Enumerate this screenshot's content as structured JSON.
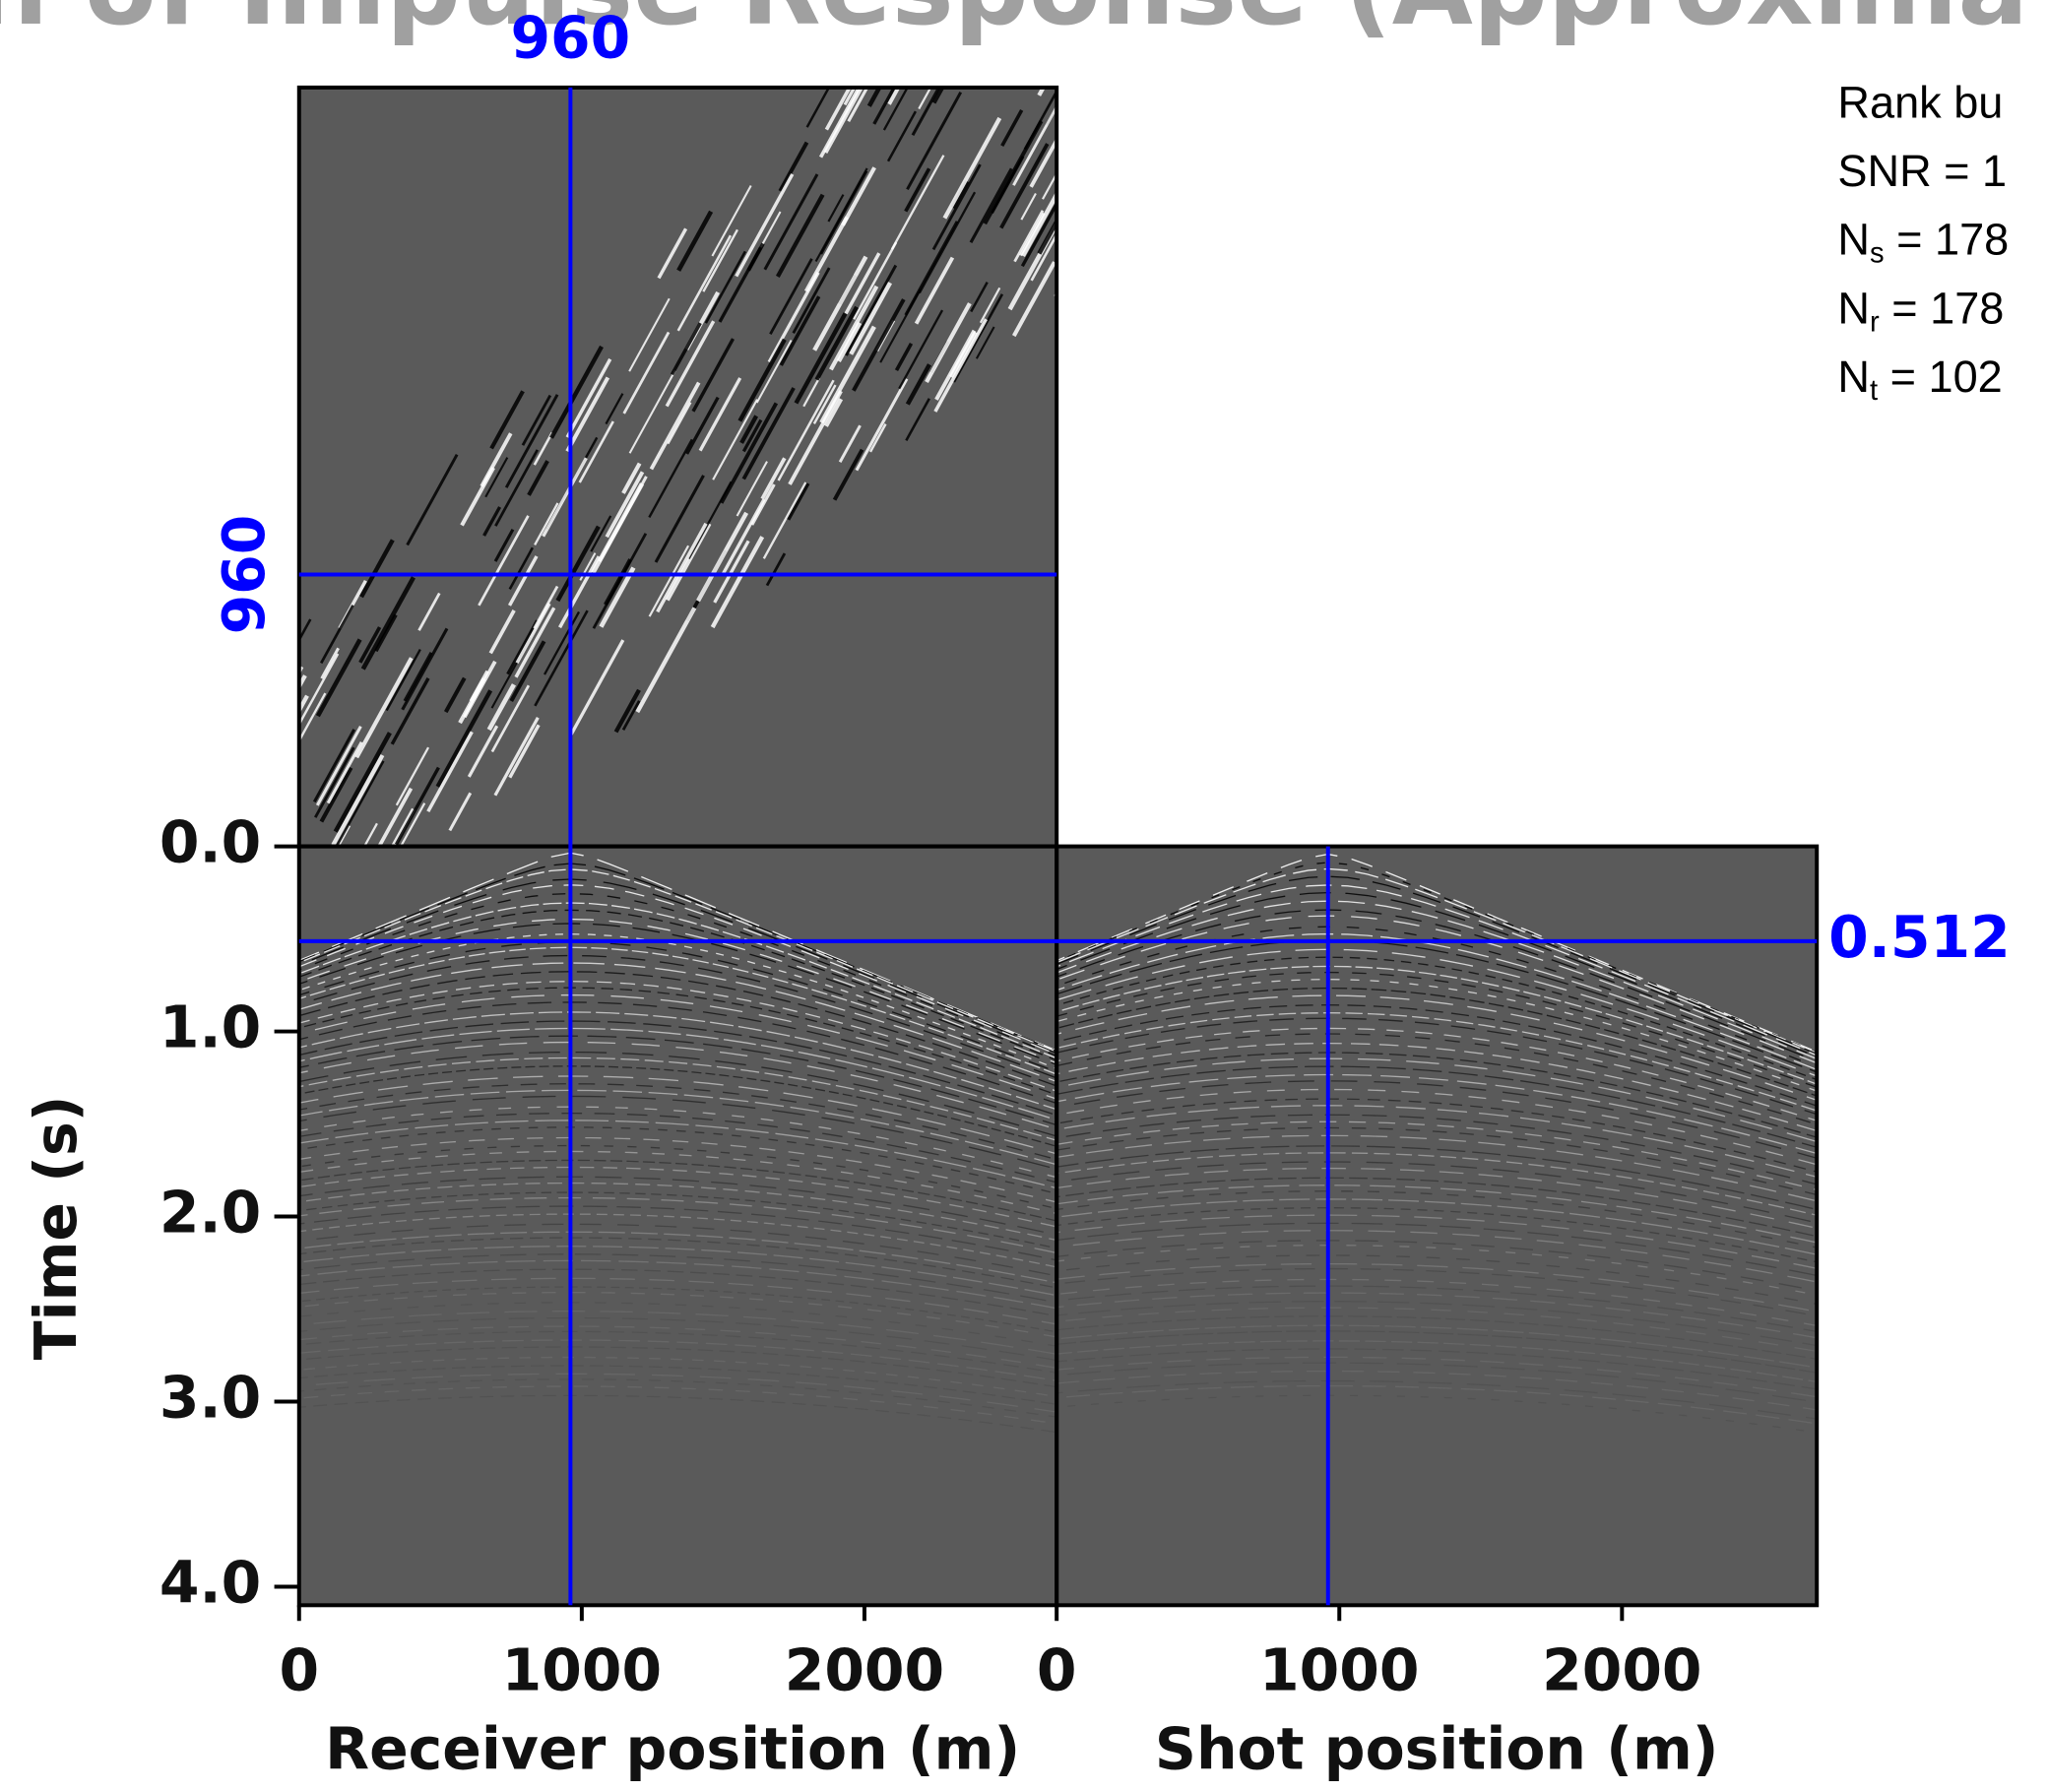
{
  "title": "n of Impulse Response (Approxima",
  "annotation": [
    {
      "text": "Rank bu"
    },
    {
      "text": "SNR = 1"
    },
    {
      "symbol": "N",
      "sub": "s",
      "text": " = 178"
    },
    {
      "symbol": "N",
      "sub": "r",
      "text": " = 178"
    },
    {
      "symbol": "N",
      "sub": "t",
      "text": " = 102"
    }
  ],
  "chart_data": {
    "type": "seismic-cube",
    "ylabel": "Time (s)",
    "ylim": [
      0,
      4.1
    ],
    "yticks": [
      {
        "value": 0,
        "label": "0.0"
      },
      {
        "value": 1,
        "label": "1.0"
      },
      {
        "value": 2,
        "label": "2.0"
      },
      {
        "value": 3,
        "label": "3.0"
      },
      {
        "value": 4,
        "label": "4.0"
      }
    ],
    "xlabel": "Receiver position (m)",
    "xlim": [
      0,
      2680
    ],
    "xticks": [
      0,
      1000,
      2000
    ],
    "x2label": "Shot position (m)",
    "x2lim": [
      0,
      2680
    ],
    "x2ticks": [
      0,
      1000,
      2000
    ],
    "crosshair": {
      "receiver": 960,
      "shot": 960,
      "time": 0.512
    },
    "crosshair_color": "#0000ff",
    "panel_color": "#5a5a5a"
  }
}
